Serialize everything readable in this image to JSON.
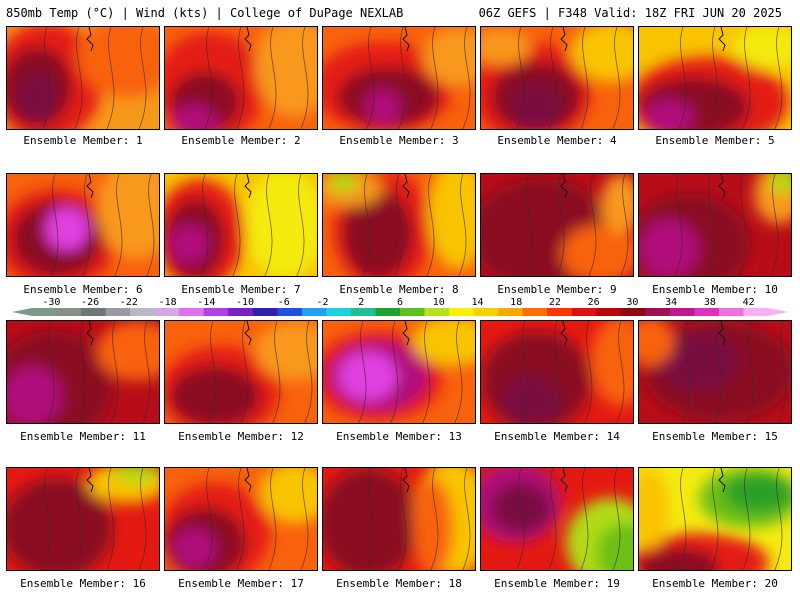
{
  "header": {
    "left": "850mb Temp (°C) | Wind (kts) | College of DuPage NEXLAB",
    "right": "06Z GEFS | F348 Valid: 18Z FRI JUN 20 2025"
  },
  "colorbar": {
    "tick_labels": [
      "-30",
      "-26",
      "-22",
      "-18",
      "-14",
      "-10",
      "-6",
      "-2",
      "2",
      "6",
      "10",
      "14",
      "18",
      "22",
      "26",
      "30",
      "34",
      "38",
      "42"
    ],
    "colors": [
      "#7a9a8a",
      "#888e88",
      "#6e7676",
      "#9a9aa2",
      "#b8b8c6",
      "#d4a8e8",
      "#e070f0",
      "#b040e0",
      "#7a20c0",
      "#3020b0",
      "#2050e0",
      "#20a0f0",
      "#20d0e0",
      "#20c090",
      "#20a030",
      "#60c020",
      "#b8e020",
      "#f8f000",
      "#f8d000",
      "#f8a800",
      "#f87000",
      "#f83800",
      "#e01010",
      "#b80808",
      "#900810",
      "#a01050",
      "#c01890",
      "#e030c0",
      "#f070e0",
      "#f8b0f0"
    ],
    "range_min": -32,
    "range_max": 44
  },
  "members": [
    {
      "label": "Ensemble Member: 1"
    },
    {
      "label": "Ensemble Member: 2"
    },
    {
      "label": "Ensemble Member: 3"
    },
    {
      "label": "Ensemble Member: 4"
    },
    {
      "label": "Ensemble Member: 5"
    },
    {
      "label": "Ensemble Member: 6"
    },
    {
      "label": "Ensemble Member: 7"
    },
    {
      "label": "Ensemble Member: 8"
    },
    {
      "label": "Ensemble Member: 9"
    },
    {
      "label": "Ensemble Member: 10"
    },
    {
      "label": "Ensemble Member: 11"
    },
    {
      "label": "Ensemble Member: 12"
    },
    {
      "label": "Ensemble Member: 13"
    },
    {
      "label": "Ensemble Member: 14"
    },
    {
      "label": "Ensemble Member: 15"
    },
    {
      "label": "Ensemble Member: 16"
    },
    {
      "label": "Ensemble Member: 17"
    },
    {
      "label": "Ensemble Member: 18"
    },
    {
      "label": "Ensemble Member: 19"
    },
    {
      "label": "Ensemble Member: 20"
    }
  ]
}
